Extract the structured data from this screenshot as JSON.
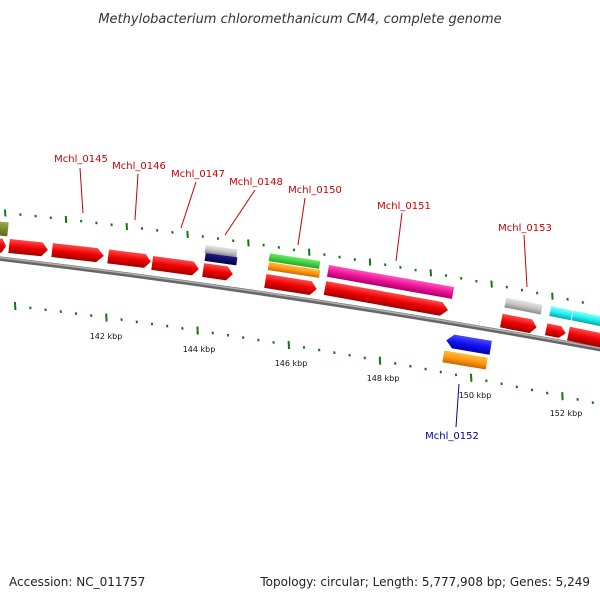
{
  "title": "Methylobacterium chloromethanicum CM4, complete genome",
  "footer": {
    "accession": "Accession: NC_011757",
    "topology": "Topology: circular; Length: 5,777,908 bp; Genes: 5,249"
  },
  "gene_labels": [
    {
      "text": "Mchl_0145",
      "strand": "forward"
    },
    {
      "text": "Mchl_0146",
      "strand": "forward"
    },
    {
      "text": "Mchl_0147",
      "strand": "forward"
    },
    {
      "text": "Mchl_0148",
      "strand": "forward"
    },
    {
      "text": "Mchl_0150",
      "strand": "forward"
    },
    {
      "text": "Mchl_0151",
      "strand": "forward"
    },
    {
      "text": "Mchl_0153",
      "strand": "forward"
    },
    {
      "text": "Mchl_0152",
      "strand": "reverse"
    }
  ],
  "scale_labels": [
    "142 kbp",
    "144 kbp",
    "146 kbp",
    "148 kbp",
    "150 kbp",
    "152 kbp"
  ],
  "colors": {
    "forward_label": "#cc0000",
    "reverse_label": "#000099",
    "cds": "#ee0000",
    "backbone": "#888888",
    "tick": "#117711"
  }
}
